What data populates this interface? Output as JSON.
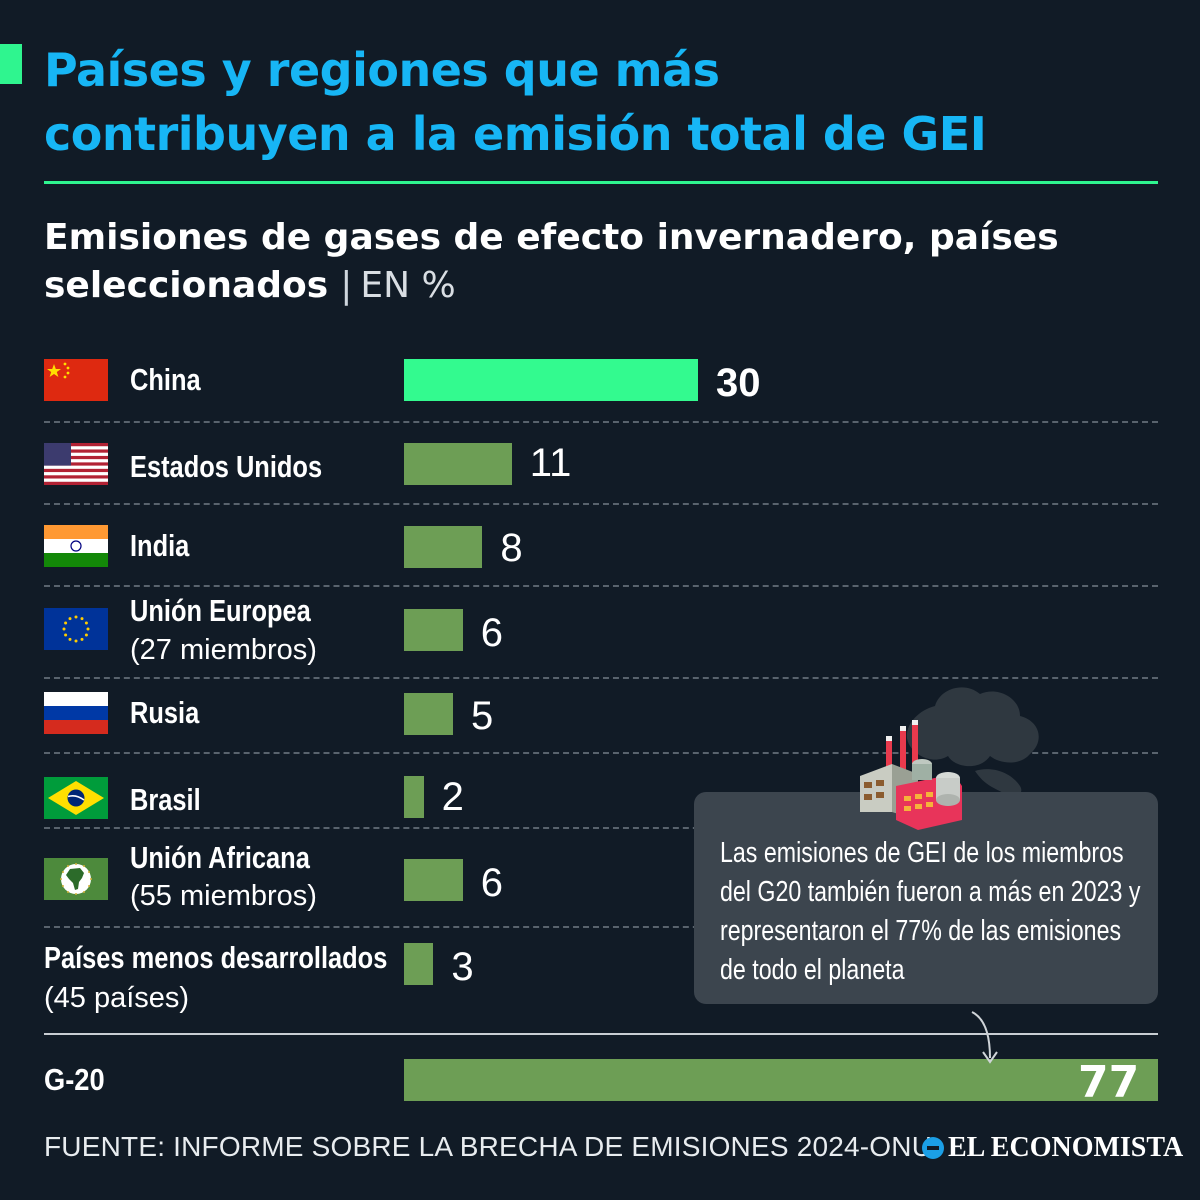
{
  "header": {
    "title_line1": "Países y regiones que más",
    "title_line2": "contribuyen a la emisión total de GEI",
    "subtitle_line1": "Emisiones de gases de efecto invernadero, países",
    "subtitle_line2": "seleccionados",
    "separator": "|",
    "unit": "EN %"
  },
  "colors": {
    "highlight_bar": "#33fa8f",
    "bar": "#6d9e55",
    "title": "#17b6f5",
    "accent": "#2ff58f",
    "background": "#111b26"
  },
  "chart_data": {
    "type": "bar",
    "orientation": "horizontal",
    "categories": [
      "China",
      "Estados Unidos",
      "India",
      "Unión Europea (27 miembros)",
      "Rusia",
      "Brasil",
      "Unión Africana (55 miembros)",
      "Países menos desarrollados (45 países)",
      "G-20"
    ],
    "values": [
      30,
      11,
      8,
      6,
      5,
      2,
      6,
      3,
      77
    ],
    "highlighted": [
      "China"
    ],
    "xlim": [
      0,
      77
    ],
    "grid": false,
    "legend": "none"
  },
  "rows": [
    {
      "label": "China",
      "sub": "",
      "value": "30",
      "flag": "china-flag"
    },
    {
      "label": "Estados Unidos",
      "sub": "",
      "value": "11",
      "flag": "usa-flag"
    },
    {
      "label": "India",
      "sub": "",
      "value": "8",
      "flag": "india-flag"
    },
    {
      "label": "Unión Europea",
      "sub": "(27 miembros)",
      "value": "6",
      "flag": "eu-flag"
    },
    {
      "label": "Rusia",
      "sub": "",
      "value": "5",
      "flag": "russia-flag"
    },
    {
      "label": "Brasil",
      "sub": "",
      "value": "2",
      "flag": "brazil-flag"
    },
    {
      "label": "Unión Africana",
      "sub": "(55 miembros)",
      "value": "6",
      "flag": "african-union-flag"
    },
    {
      "label": "Países menos desarrollados",
      "sub": "(45 países)",
      "value": "3",
      "flag": ""
    }
  ],
  "g20": {
    "label": "G-20",
    "value": "77"
  },
  "callout": {
    "text": "Las emisiones de GEI de los miembros del G20 también fueron a más en 2023 y representaron el 77% de las emisiones de todo el planeta",
    "icon": "factory-icon"
  },
  "footer": {
    "source": "FUENTE: INFORME SOBRE LA BRECHA DE EMISIONES 2024-ONU",
    "brand": "EL ECONOMISTA"
  }
}
